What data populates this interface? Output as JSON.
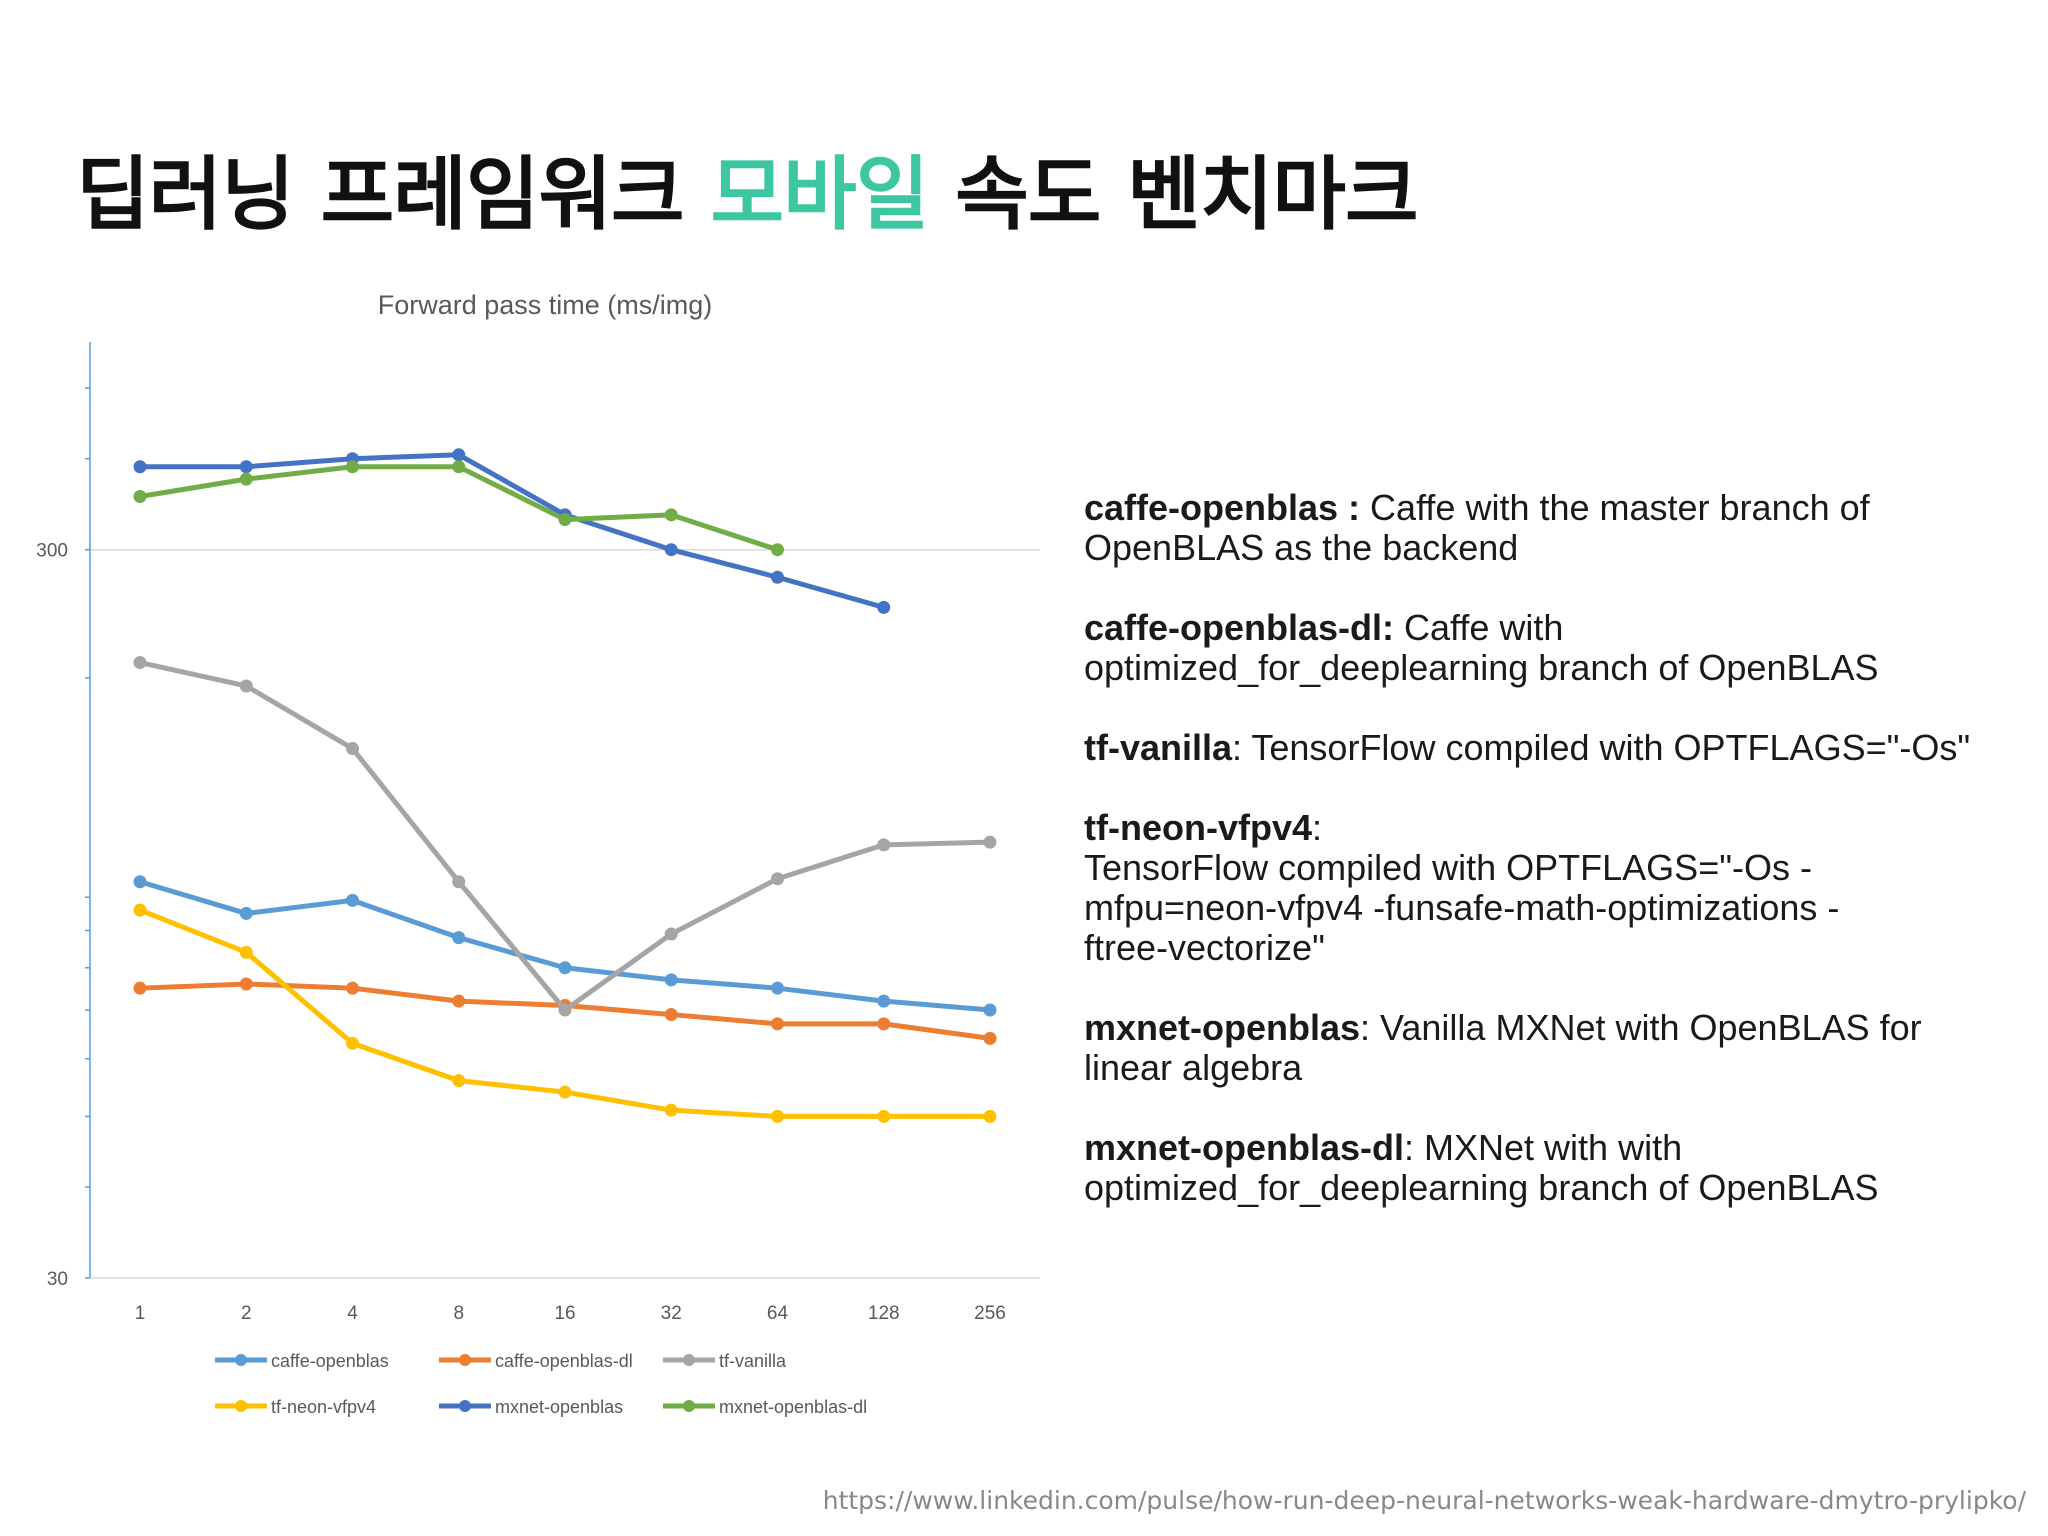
{
  "slide": {
    "title_before": "딥러닝 프레임워크 ",
    "title_accent": "모바일",
    "title_after": " 속도 벤치마크",
    "accent_color": "#3cc7a0"
  },
  "chart_data": {
    "type": "line",
    "title": "Forward pass time (ms/img)",
    "xlabel": "",
    "ylabel": "",
    "yscale": "log",
    "ylim": [
      30,
      550
    ],
    "ytick_labels": [
      "300",
      "30"
    ],
    "yticks": [
      300,
      30
    ],
    "categories": [
      "1",
      "2",
      "4",
      "8",
      "16",
      "32",
      "64",
      "128",
      "256"
    ],
    "legend_position": "bottom",
    "gridlines": [
      300
    ],
    "series": [
      {
        "name": "caffe-openblas",
        "color": "#5b9bd5",
        "values": [
          105,
          95,
          99,
          88,
          80,
          77,
          75,
          72,
          70
        ]
      },
      {
        "name": "caffe-openblas-dl",
        "color": "#ed7d31",
        "values": [
          75,
          76,
          75,
          72,
          71,
          69,
          67,
          67,
          64
        ]
      },
      {
        "name": "tf-vanilla",
        "color": "#a5a5a5",
        "values": [
          210,
          195,
          160,
          105,
          70,
          89,
          106,
          118,
          119
        ]
      },
      {
        "name": "tf-neon-vfpv4",
        "color": "#ffc000",
        "values": [
          96,
          84,
          63,
          56,
          54,
          51,
          50,
          50,
          50
        ]
      },
      {
        "name": "mxnet-openblas",
        "color": "#4472c4",
        "values": [
          390,
          390,
          400,
          405,
          335,
          300,
          275,
          250,
          null
        ]
      },
      {
        "name": "mxnet-openblas-dl",
        "color": "#70ad47",
        "values": [
          355,
          375,
          390,
          390,
          330,
          335,
          300,
          null,
          null
        ]
      }
    ]
  },
  "descriptions": [
    {
      "name": "caffe-openblas :",
      "text": " Caffe with the master branch of\nOpenBLAS as the backend"
    },
    {
      "name": "caffe-openblas-dl:",
      "text": " Caffe with\noptimized_for_deeplearning branch of OpenBLAS"
    },
    {
      "name": "tf-vanilla",
      "text": ": TensorFlow compiled with OPTFLAGS=\"-Os\""
    },
    {
      "name": "tf-neon-vfpv4",
      "text": ":\nTensorFlow compiled with OPTFLAGS=\"-Os -\nmfpu=neon-vfpv4 -funsafe-math-optimizations -\nftree-vectorize\""
    },
    {
      "name": "mxnet-openblas",
      "text": ": Vanilla MXNet with OpenBLAS for\nlinear algebra"
    },
    {
      "name": "mxnet-openblas-dl",
      "text": ": MXNet with with\noptimized_for_deeplearning branch of OpenBLAS"
    }
  ],
  "source_url": "https://www.linkedin.com/pulse/how-run-deep-neural-networks-weak-hardware-dmytro-prylipko/"
}
